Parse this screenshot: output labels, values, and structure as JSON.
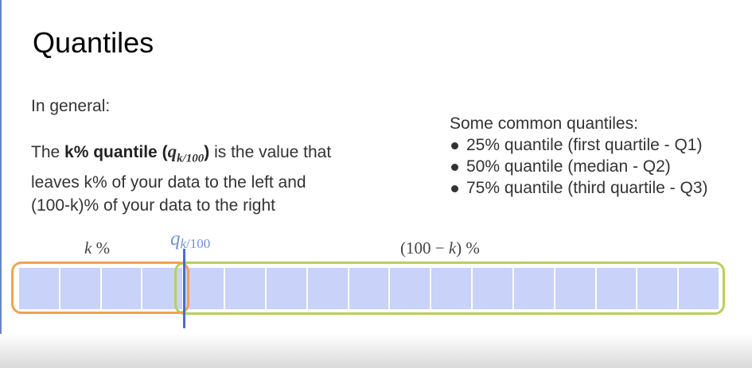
{
  "title": "Quantiles",
  "intro": "In general:",
  "definition": {
    "prefix": "The ",
    "term": "k% quantile",
    "open_paren": " (",
    "symbol": "q",
    "symbol_sub": "k/100",
    "close_paren": ")",
    "rest": " is the value that leaves k% of your data to the left and (100-k)% of your data to the right"
  },
  "common": {
    "heading": "Some common quantiles:",
    "items": [
      "25% quantile (first quartile - Q1)",
      "50% quantile (median - Q2)",
      "75% quantile (third quartile - Q3)"
    ]
  },
  "diagram": {
    "left_label_var": "k",
    "left_label_unit": " %",
    "right_label_open": "(100 − ",
    "right_label_var": "k",
    "right_label_close": ") %",
    "q_symbol": "q",
    "q_sub_var": "k",
    "q_sub_rest": "/100",
    "cell_count": 17,
    "split_after_cells": 4,
    "colors": {
      "cell": "#c9d2f8",
      "left_group": "#f2a24f",
      "right_group": "#b8d05a",
      "quantile_line": "#4a6dc8",
      "quantile_label": "#6f92d9"
    }
  }
}
